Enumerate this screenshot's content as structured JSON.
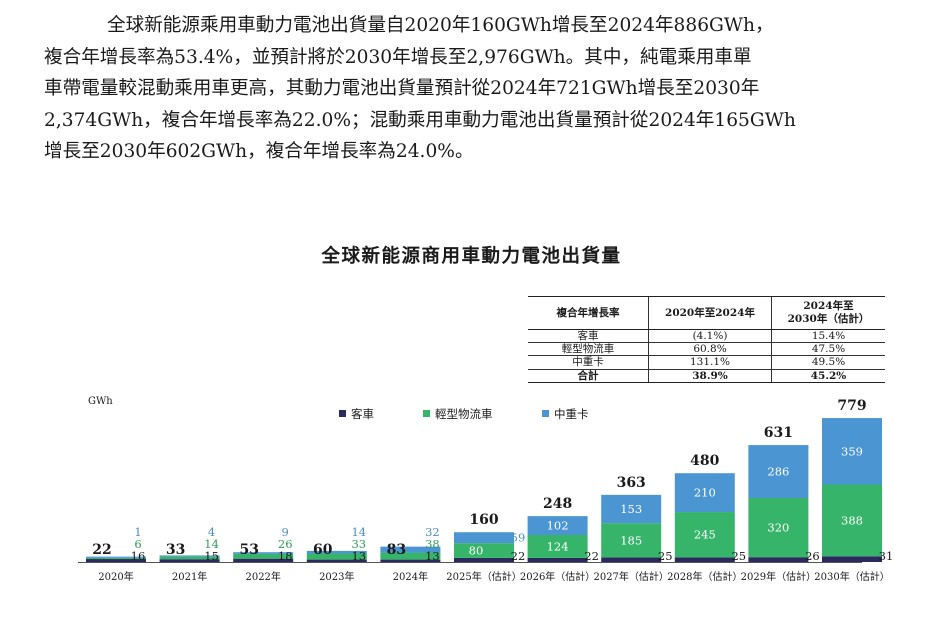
{
  "intro": {
    "lines": [
      "全球新能源乘用車動力電池出貨量自2020年160GWh增長至2024年886GWh，",
      "複合年增長率為53.4%，並預計將於2030年增長至2,976GWh。其中，純電乘用車單",
      "車帶電量較混動乘用車更高，其動力電池出貨量預計從2024年721GWh增長至2030年",
      "2,374GWh，複合年增長率為22.0%；混動乘用車動力電池出貨量預計從2024年165GWh",
      "增長至2030年602GWh，複合年增長率為24.0%。"
    ]
  },
  "cagr_table": {
    "header": {
      "label": "複合年增長率",
      "col1": "2020年至2024年",
      "col2_line1": "2024年至",
      "col2_line2": "2030年（估計）"
    },
    "rows": [
      {
        "label": "客車",
        "col1": "(4.1%)",
        "col2": "15.4%"
      },
      {
        "label": "輕型物流車",
        "col1": "60.8%",
        "col2": "47.5%"
      },
      {
        "label": "中重卡",
        "col1": "131.1%",
        "col2": "49.5%"
      }
    ],
    "total": {
      "label": "合計",
      "col1": "38.9%",
      "col2": "45.2%"
    }
  },
  "chart_data": {
    "type": "bar",
    "stacked": true,
    "title": "全球新能源商用車動力電池出貨量",
    "ylabel": "GWh",
    "xlabel": "",
    "ylim": [
      0,
      800
    ],
    "grid": false,
    "legend_position": "top",
    "categories": [
      "2020年",
      "2021年",
      "2022年",
      "2023年",
      "2024年",
      "2025年（估計）",
      "2026年（估計）",
      "2027年（估計）",
      "2028年（估計）",
      "2029年（估計）",
      "2030年（估計）"
    ],
    "series": [
      {
        "name": "客車",
        "color": "#2b2a5e",
        "values": [
          16,
          15,
          18,
          13,
          13,
          22,
          22,
          25,
          25,
          26,
          31
        ]
      },
      {
        "name": "輕型物流車",
        "color": "#36b56a",
        "values": [
          6,
          14,
          26,
          33,
          38,
          80,
          124,
          185,
          245,
          320,
          388
        ]
      },
      {
        "name": "中重卡",
        "color": "#4b95d2",
        "values": [
          1,
          4,
          9,
          14,
          32,
          59,
          102,
          153,
          210,
          286,
          359
        ]
      }
    ],
    "totals": [
      22,
      33,
      53,
      60,
      83,
      160,
      248,
      363,
      480,
      631,
      779
    ],
    "label_style": [
      "side",
      "side",
      "side",
      "side",
      "side",
      "mixed",
      "inside",
      "inside",
      "inside",
      "inside",
      "inside"
    ]
  }
}
